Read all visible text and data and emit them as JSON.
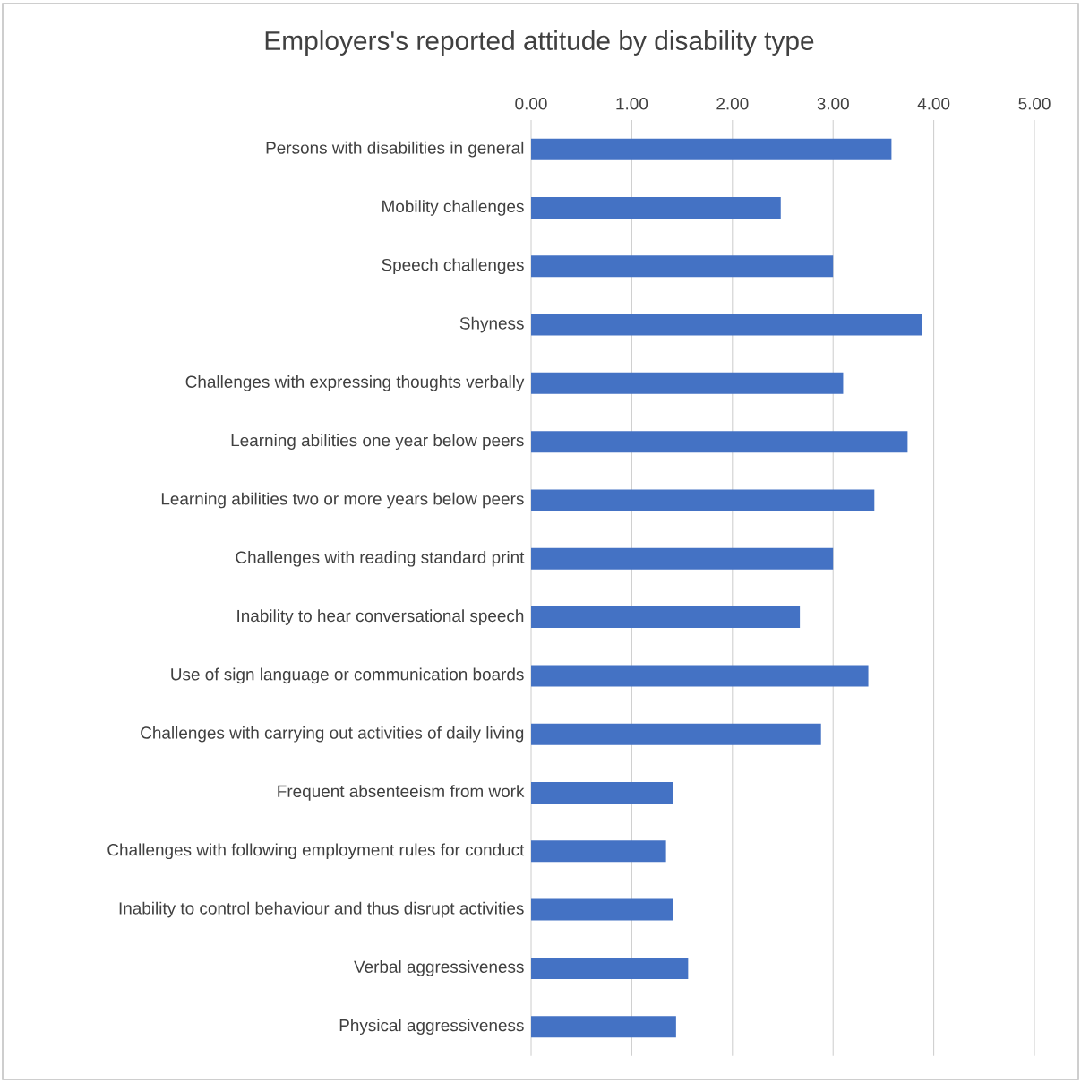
{
  "chart_data": {
    "type": "bar",
    "orientation": "horizontal",
    "title": "Employers's reported attitude by disability type",
    "categories": [
      "Persons with disabilities in general",
      "Mobility challenges",
      "Speech challenges",
      "Shyness",
      "Challenges with expressing thoughts verbally",
      "Learning abilities one year below peers",
      "Learning abilities two or more years below peers",
      "Challenges with reading standard print",
      "Inability to hear conversational speech",
      "Use of sign language or communication boards",
      "Challenges with carrying out activities of daily living",
      "Frequent absenteeism from work",
      "Challenges with following employment rules for conduct",
      "Inability to control behaviour and thus disrupt activities",
      "Verbal aggressiveness",
      "Physical aggressiveness"
    ],
    "values": [
      3.58,
      2.48,
      3.0,
      3.88,
      3.1,
      3.74,
      3.41,
      3.0,
      2.67,
      3.35,
      2.88,
      1.41,
      1.34,
      1.41,
      1.56,
      1.44
    ],
    "color": "#4472c4",
    "xlim": [
      0,
      5
    ],
    "xticks": [
      {
        "value": 0,
        "label": "0.00"
      },
      {
        "value": 1,
        "label": "1.00"
      },
      {
        "value": 2,
        "label": "2.00"
      },
      {
        "value": 3,
        "label": "3.00"
      },
      {
        "value": 4,
        "label": "4.00"
      },
      {
        "value": 5,
        "label": "5.00"
      }
    ],
    "grid": "x"
  }
}
